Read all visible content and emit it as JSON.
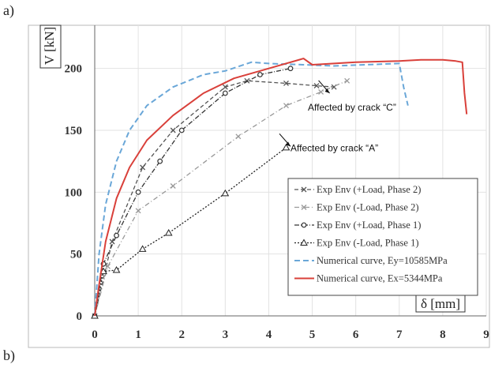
{
  "panel_labels": {
    "top": "a)",
    "bottom": "b)"
  },
  "chart_data": {
    "type": "line",
    "title": "",
    "xlabel": "δ [mm]",
    "ylabel": "V [kN]",
    "xlim": [
      0,
      9
    ],
    "ylim": [
      0,
      225
    ],
    "x_ticks": [
      0,
      1,
      2,
      3,
      4,
      5,
      6,
      7,
      8,
      9
    ],
    "y_ticks": [
      0,
      50,
      100,
      150,
      200
    ],
    "grid": true,
    "legend_position": "bottom-right",
    "series": [
      {
        "name": "Exp Env (+Load, Phase 2)",
        "color": "#555555",
        "dash": "5,3",
        "marker": "x",
        "x": [
          0,
          0.4,
          1.1,
          1.8,
          3.0,
          3.5,
          4.4,
          5.1,
          5.5
        ],
        "y": [
          0,
          60,
          120,
          150,
          185,
          190,
          188,
          186,
          185
        ]
      },
      {
        "name": "Exp Env (-Load, Phase 2)",
        "color": "#999999",
        "dash": "6,3,1,3",
        "marker": "x",
        "x": [
          0,
          0.3,
          1.0,
          1.8,
          3.3,
          4.4,
          5.2,
          5.8
        ],
        "y": [
          0,
          40,
          85,
          105,
          145,
          170,
          181,
          190
        ]
      },
      {
        "name": "Exp Env (+Load, Phase 1)",
        "color": "#333333",
        "dash": "6,2,1,2",
        "marker": "circle",
        "x": [
          0,
          0.2,
          0.5,
          1.0,
          1.5,
          2.0,
          3.0,
          3.8,
          4.5
        ],
        "y": [
          0,
          42,
          65,
          100,
          125,
          150,
          180,
          195,
          200
        ]
      },
      {
        "name": "Exp Env (-Load, Phase 1)",
        "color": "#222222",
        "dash": "2,2",
        "marker": "triangle",
        "x": [
          0,
          0.2,
          0.5,
          1.1,
          1.7,
          3.0,
          4.4
        ],
        "y": [
          0,
          36,
          37,
          54,
          67,
          99,
          136
        ]
      },
      {
        "name": "Numerical curve, Ey=10585MPa",
        "color": "#6aa7d8",
        "dash": "7,4",
        "marker": "none",
        "x": [
          0,
          0.1,
          0.25,
          0.5,
          0.8,
          1.2,
          1.8,
          2.5,
          3.0,
          3.6,
          4.0,
          4.8,
          5.5,
          6.2,
          7.0,
          7.1,
          7.2
        ],
        "y": [
          0,
          50,
          90,
          125,
          150,
          170,
          185,
          195,
          198,
          205,
          204,
          203,
          202,
          203,
          204,
          185,
          170
        ]
      },
      {
        "name": "Numerical curve, Ex=5344MPa",
        "color": "#d9403a",
        "dash": "",
        "marker": "none",
        "x": [
          0,
          0.1,
          0.25,
          0.5,
          0.8,
          1.2,
          1.8,
          2.5,
          3.2,
          4.0,
          4.8,
          5.0,
          5.5,
          6.0,
          7.0,
          7.5,
          8.0,
          8.3,
          8.45,
          8.5,
          8.55
        ],
        "y": [
          0,
          25,
          60,
          95,
          120,
          142,
          162,
          180,
          192,
          200,
          208,
          203,
          204,
          205,
          206,
          207,
          207,
          206,
          205,
          180,
          163
        ]
      }
    ],
    "annotations": [
      {
        "text": "Affected by crack “C”",
        "x": 4.9,
        "y": 166,
        "arrow_to": [
          5.4,
          180
        ]
      },
      {
        "text": "Affected by crack “A”",
        "x": 4.5,
        "y": 133,
        "arrow_to": [
          4.5,
          137
        ]
      }
    ]
  }
}
